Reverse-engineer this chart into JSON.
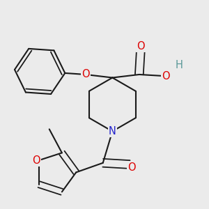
{
  "bg_color": "#ebebeb",
  "bond_color": "#1a1a1a",
  "bond_width": 1.5,
  "atom_colors": {
    "O": "#dd0000",
    "N": "#2222cc",
    "H": "#5a9898"
  }
}
